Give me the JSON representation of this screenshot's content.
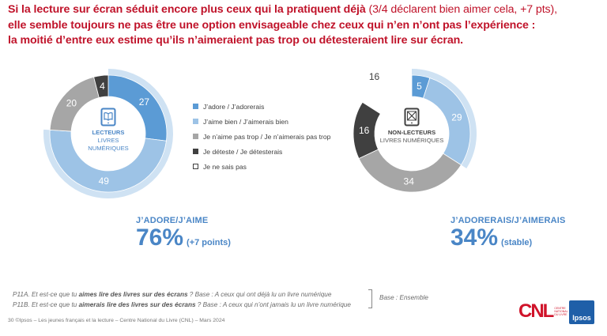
{
  "title": {
    "bold_part": "Si la lecture sur écran séduit encore plus ceux qui la pratiquent déjà",
    "light_part": " (3/4 déclarent bien aimer cela, +7 pts),",
    "line2": "elle semble toujours ne pas être une option envisageable chez ceux qui n’en n’ont pas l’expérience :",
    "line3": "la moitié d’entre eux estime qu’ils n’aimeraient pas trop ou détesteraient lire sur écran."
  },
  "colors": {
    "adore": "#5b9bd5",
    "aime": "#9dc3e6",
    "aime_pas": "#a6a6a6",
    "deteste": "#404040",
    "ne_sais_pas": "#ffffff",
    "highlight_ring": "#cfe2f3",
    "title_red": "#c0132a",
    "kpi_blue": "#4a86c6"
  },
  "left_donut": {
    "line1": "LECTEURS",
    "line2": "LIVRES NUMÉRIQUES",
    "icon": "tablet-book-icon"
  },
  "right_donut": {
    "line1": "NON-LECTEURS",
    "line2": "LIVRES NUMÉRIQUES",
    "icon": "tablet-crossed-icon"
  },
  "legend": [
    {
      "label": "J’adore / J’adorerais",
      "color": "#5b9bd5"
    },
    {
      "label": "J’aime bien / J’aimerais bien",
      "color": "#9dc3e6"
    },
    {
      "label": "Je n’aime pas trop / Je n’aimerais pas trop",
      "color": "#a6a6a6"
    },
    {
      "label": "Je déteste / Je détesterais",
      "color": "#404040"
    },
    {
      "label": "Je ne sais pas",
      "color": "#ffffff"
    }
  ],
  "kpi_left": {
    "label": "J’ADORE/J’AIME",
    "value": "76%",
    "note": "(+7 points)"
  },
  "kpi_right": {
    "label": "J’ADORERAIS/J’AIMERAIS",
    "value": "34%",
    "note": "(stable)"
  },
  "notes": {
    "q1_pre": "P11A. Et est-ce que tu ",
    "q1_bold": "aimes lire des livres sur des écrans",
    "q1_post": " ? Base : A ceux qui ont déjà lu un livre numérique",
    "q2_pre": "P11B. Et est-ce que tu ",
    "q2_bold": "aimerais lire des livres sur des écrans",
    "q2_post": " ? Base : A ceux qui n’ont jamais lu un livre numérique",
    "base": "Base : Ensemble"
  },
  "footer": "30   ©Ipsos – Les jeunes français et la lecture – Centre National du Livre (CNL) – Mars 2024",
  "logos": {
    "cnl": "CNL",
    "cnl_small": "CENTRE NATIONAL DU LIVRE",
    "ipsos": "Ipsos"
  },
  "chart_data": [
    {
      "type": "pie",
      "subtype": "donut",
      "title": "LECTEURS LIVRES NUMÉRIQUES",
      "categories": [
        "J’adore / J’adorerais",
        "J’aime bien / J’aimerais bien",
        "Je n’aime pas trop / Je n’aimerais pas trop",
        "Je déteste / Je détesterais",
        "Je ne sais pas"
      ],
      "values": [
        27,
        49,
        20,
        4,
        0
      ],
      "highlight": {
        "label": "J’ADORE/J’AIME",
        "value": 76,
        "change": "+7 points"
      }
    },
    {
      "type": "pie",
      "subtype": "donut",
      "title": "NON-LECTEURS LIVRES NUMÉRIQUES",
      "categories": [
        "J’adore / J’adorerais",
        "J’aime bien / J’aimerais bien",
        "Je n’aime pas trop / Je n’aimerais pas trop",
        "Je déteste / Je détesterais",
        "Je ne sais pas"
      ],
      "values": [
        5,
        29,
        34,
        16,
        16
      ],
      "highlight": {
        "label": "J’ADORERAIS/J’AIMERAIS",
        "value": 34,
        "change": "stable"
      }
    }
  ]
}
